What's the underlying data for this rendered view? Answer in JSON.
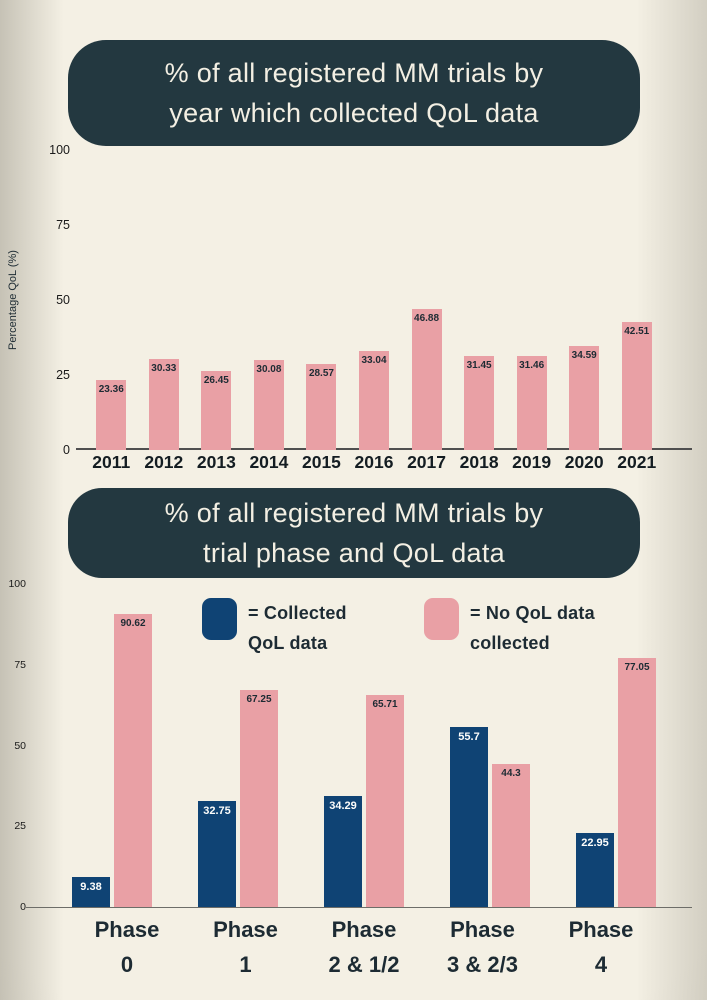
{
  "colors": {
    "background": "#f2eee2",
    "background_edge": "#d7d3c6",
    "title_box": "#233840",
    "title_text": "#f3efe3",
    "pink": "#e9a0a5",
    "navy": "#0f4374",
    "dark_text": "#1d2b33",
    "value_label_on_navy": "#fdfdfb"
  },
  "chart_data": [
    {
      "type": "bar",
      "title": "% of all registered MM trials by year which collected QoL data",
      "title_lines": [
        "% of all registered MM trials by",
        "year which collected QoL data"
      ],
      "xlabel": "",
      "ylabel": "Percentage QoL (%)",
      "ylim": [
        0,
        100
      ],
      "yticks": [
        "0",
        "25",
        "50",
        "75",
        "100"
      ],
      "grid": false,
      "legend_position": "none",
      "bar_color": "#e9a0a5",
      "value_labels": "inside-top",
      "categories": [
        "2011",
        "2012",
        "2013",
        "2014",
        "2015",
        "2016",
        "2017",
        "2018",
        "2019",
        "2020",
        "2021"
      ],
      "values": [
        23.36,
        30.33,
        26.45,
        30.08,
        28.57,
        33.04,
        46.88,
        31.45,
        31.46,
        34.59,
        42.51
      ]
    },
    {
      "type": "bar",
      "title": "% of all registered MM trials by trial phase and QoL data",
      "title_lines": [
        "% of all registered MM trials by",
        "trial phase and QoL data"
      ],
      "xlabel": "",
      "ylabel": "",
      "ylim": [
        0,
        100
      ],
      "yticks": [
        "0",
        "25",
        "50",
        "75",
        "100"
      ],
      "grid": false,
      "legend_position": "top",
      "value_labels": "inside-top",
      "categories": [
        "Phase 0",
        "Phase 1",
        "Phase 2 & 1/2",
        "Phase 3 & 2/3",
        "Phase 4"
      ],
      "category_lines": [
        [
          "Phase",
          "0"
        ],
        [
          "Phase",
          "1"
        ],
        [
          "Phase",
          "2 & 1/2"
        ],
        [
          "Phase",
          "3 & 2/3"
        ],
        [
          "Phase",
          "4"
        ]
      ],
      "series": [
        {
          "name": "= Collected QoL data",
          "color": "#0f4374",
          "label_color": "#fdfdfb",
          "values": [
            9.38,
            32.75,
            34.29,
            55.7,
            22.95
          ]
        },
        {
          "name": "= No QoL data collected",
          "color": "#e9a0a5",
          "label_color": "#1d2b33",
          "values": [
            90.62,
            67.25,
            65.71,
            44.3,
            77.05
          ]
        }
      ],
      "legend_items": [
        {
          "lines": [
            "= Collected",
            "QoL data"
          ],
          "color": "#0f4374"
        },
        {
          "lines": [
            "= No QoL data",
            "collected"
          ],
          "color": "#e9a0a5"
        }
      ]
    }
  ]
}
